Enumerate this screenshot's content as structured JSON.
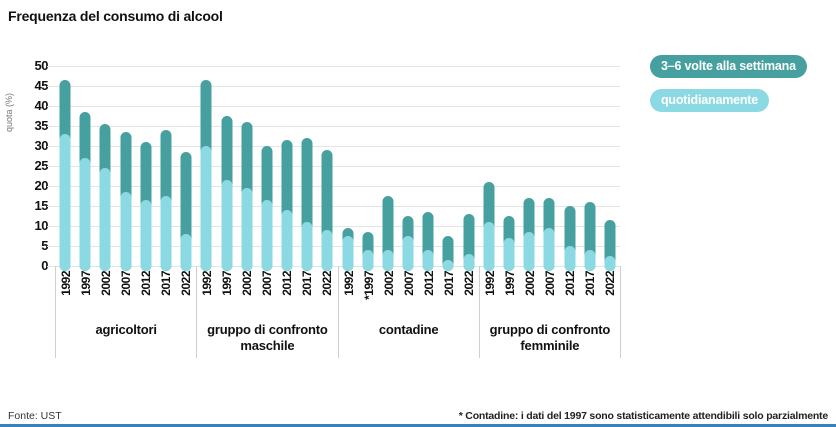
{
  "title": "Frequenza del consumo di alcool",
  "legend": [
    {
      "name": "weekly",
      "label": "3–6 volte alla settimana",
      "color": "#46a0a0"
    },
    {
      "name": "daily",
      "label": "quotidianamente",
      "color": "#8bd9e3"
    }
  ],
  "colors": {
    "weekly_3_6": "#46a0a0",
    "daily": "#8bd9e3",
    "gridline": "#e4e4e4",
    "bottom_rule": "#3a81ba"
  },
  "footer": {
    "source": "Fonte: UST",
    "footnote": "* Contadine: i dati del 1997 sono statisticamente attendibili solo parzialmente"
  },
  "chart_data": {
    "type": "bar",
    "stacked": true,
    "title": "Frequenza del consumo di alcool",
    "ylabel": "quota (%)",
    "xlabel": "",
    "ylim": [
      0,
      50
    ],
    "yticks": [
      50,
      45,
      40,
      35,
      30,
      25,
      20,
      15,
      10,
      5,
      0
    ],
    "grid": true,
    "legend_position": "top-right",
    "stack_order_bottom_to_top": [
      "quotidianamente",
      "3–6 volte alla settimana"
    ],
    "groups": [
      {
        "label": "agricoltori",
        "years": [
          "1992",
          "1997",
          "2002",
          "2007",
          "2012",
          "2017",
          "2022"
        ],
        "series": [
          {
            "name": "quotidianamente",
            "values": [
              33,
              27,
              24.5,
              18.5,
              16.5,
              17.5,
              8
            ]
          },
          {
            "name": "3–6 volte alla settimana",
            "values": [
              13.5,
              11.5,
              11,
              15,
              14.5,
              16.5,
              20.5
            ]
          }
        ]
      },
      {
        "label": "gruppo di confronto maschile",
        "years": [
          "1992",
          "1997",
          "2002",
          "2007",
          "2012",
          "2017",
          "2022"
        ],
        "series": [
          {
            "name": "quotidianamente",
            "values": [
              30,
              21.5,
              19.5,
              16.5,
              14,
              11,
              9
            ]
          },
          {
            "name": "3–6 volte alla settimana",
            "values": [
              16.5,
              16,
              16.5,
              13.5,
              17.5,
              21,
              20
            ]
          }
        ]
      },
      {
        "label": "contadine",
        "years": [
          "1992",
          "*1997",
          "2002",
          "2007",
          "2012",
          "2017",
          "2022"
        ],
        "series": [
          {
            "name": "quotidianamente",
            "values": [
              7.5,
              4,
              4,
              7.5,
              4,
              1.5,
              3
            ]
          },
          {
            "name": "3–6 volte alla settimana",
            "values": [
              2,
              4.5,
              13.5,
              5,
              9.5,
              6,
              10
            ]
          }
        ]
      },
      {
        "label": "gruppo di confronto femminile",
        "years": [
          "1992",
          "1997",
          "2002",
          "2007",
          "2012",
          "2017",
          "2022"
        ],
        "series": [
          {
            "name": "quotidianamente",
            "values": [
              11,
              7,
              8.5,
              9.5,
              5,
              4,
              2.5
            ]
          },
          {
            "name": "3–6 volte alla settimana",
            "values": [
              10,
              5.5,
              8.5,
              7.5,
              10,
              12,
              9
            ]
          }
        ]
      }
    ]
  }
}
